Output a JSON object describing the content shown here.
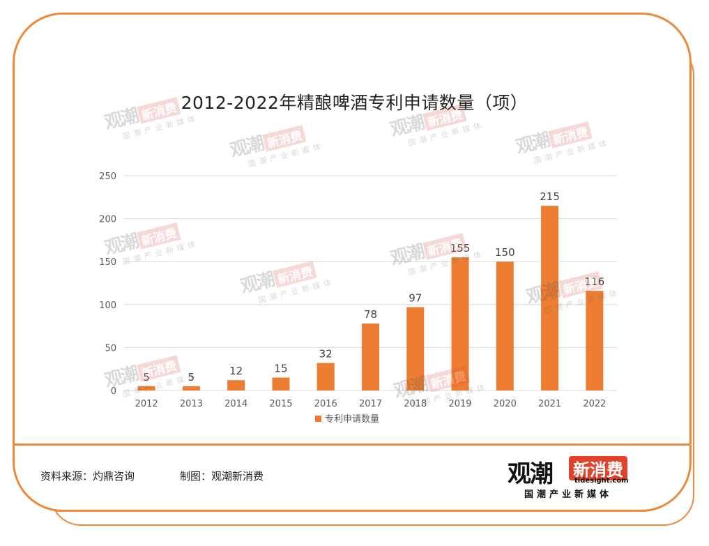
{
  "chart_data": {
    "type": "bar",
    "title": "2012-2022年精酿啤酒专利申请数量（项）",
    "categories": [
      "2012",
      "2013",
      "2014",
      "2015",
      "2016",
      "2017",
      "2018",
      "2019",
      "2020",
      "2021",
      "2022"
    ],
    "series": [
      {
        "name": "专利申请数量",
        "values": [
          5,
          5,
          12,
          15,
          32,
          78,
          97,
          155,
          150,
          215,
          116
        ],
        "color": "#ed7d31"
      }
    ],
    "y_ticks": [
      0,
      50,
      100,
      150,
      200,
      250
    ],
    "ylim": [
      0,
      250
    ],
    "grid": true,
    "legend_position": "bottom",
    "data_labels": true
  },
  "footer": {
    "source": "资料来源：灼鼎咨询",
    "maker": "制图：观潮新消费"
  },
  "logo": {
    "main": "观潮",
    "badge": "新消费",
    "url": "tidesight.com",
    "tagline": "国潮产业新媒体"
  },
  "colors": {
    "frame": "#ea8a3e",
    "bar": "#ed7d31",
    "grid": "#d9d9d9",
    "logo_badge": "#e0422b"
  }
}
